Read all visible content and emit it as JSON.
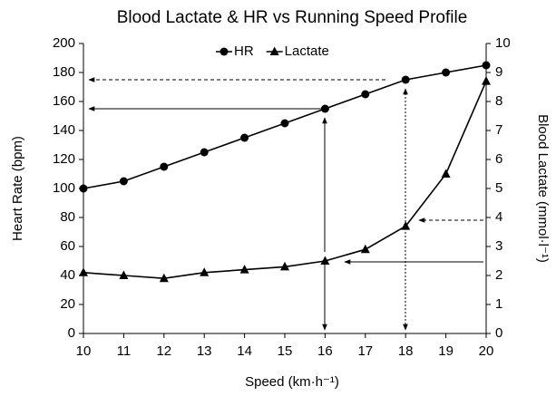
{
  "chart_data": {
    "type": "line",
    "title": "Blood Lactate & HR vs Running Speed Profile",
    "x_label": "Speed (km·h⁻¹)",
    "y_label": "Heart Rate (bpm)",
    "y2_label": "Blood Lactate (mmol·l⁻¹)",
    "x": [
      10,
      11,
      12,
      13,
      14,
      15,
      16,
      17,
      18,
      19,
      20
    ],
    "xlim": [
      10,
      20
    ],
    "xticks": [
      10,
      11,
      12,
      13,
      14,
      15,
      16,
      17,
      18,
      19,
      20
    ],
    "ylim": [
      0,
      200
    ],
    "yticks": [
      0,
      20,
      40,
      60,
      80,
      100,
      120,
      140,
      160,
      180,
      200
    ],
    "y2lim": [
      0,
      10
    ],
    "y2ticks": [
      0,
      1,
      2,
      3,
      4,
      5,
      6,
      7,
      8,
      9,
      10
    ],
    "legend": "top",
    "series": [
      {
        "name": "HR",
        "color": "#000000",
        "marker": "circle",
        "values": [
          100,
          105,
          115,
          125,
          135,
          145,
          155,
          165,
          175,
          180,
          185
        ]
      },
      {
        "name": "Lactate",
        "color": "#000000",
        "marker": "triangle",
        "axis": "y2",
        "values": [
          2.1,
          2.0,
          1.9,
          2.1,
          2.2,
          2.3,
          2.5,
          2.9,
          3.7,
          5.5,
          8.7
        ]
      }
    ]
  }
}
